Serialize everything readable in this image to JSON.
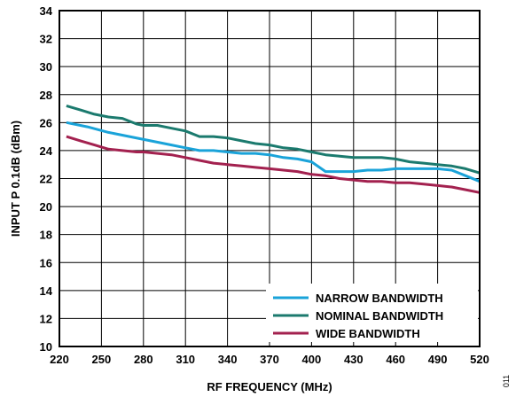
{
  "chart_data": {
    "type": "line",
    "title": "",
    "xlabel": "RF FREQUENCY (MHz)",
    "ylabel": "INPUT P 0.1dB (dBm)",
    "xlim": [
      220,
      520
    ],
    "ylim": [
      10,
      34
    ],
    "xticks": [
      220,
      250,
      280,
      310,
      340,
      370,
      400,
      430,
      460,
      490,
      520
    ],
    "yticks": [
      10,
      12,
      14,
      16,
      18,
      20,
      22,
      24,
      26,
      28,
      30,
      32,
      34
    ],
    "grid": true,
    "legend_position": "bottom-right",
    "figure_id": "011",
    "series": [
      {
        "name": "NARROW BANDWIDTH",
        "color": "#1aa3d9",
        "x": [
          225,
          240,
          255,
          270,
          285,
          300,
          310,
          320,
          330,
          340,
          350,
          360,
          370,
          380,
          390,
          400,
          410,
          420,
          430,
          440,
          450,
          460,
          470,
          480,
          490,
          500,
          510,
          520
        ],
        "y": [
          26.0,
          25.7,
          25.3,
          25.0,
          24.7,
          24.4,
          24.2,
          24.0,
          24.0,
          23.9,
          23.8,
          23.8,
          23.7,
          23.5,
          23.4,
          23.2,
          22.5,
          22.5,
          22.5,
          22.6,
          22.6,
          22.7,
          22.7,
          22.7,
          22.7,
          22.6,
          22.2,
          21.8
        ]
      },
      {
        "name": "NOMINAL BANDWIDTH",
        "color": "#1b7a6e",
        "x": [
          225,
          235,
          245,
          255,
          265,
          275,
          280,
          290,
          300,
          310,
          320,
          330,
          340,
          350,
          360,
          370,
          380,
          390,
          400,
          410,
          420,
          430,
          440,
          450,
          460,
          470,
          480,
          490,
          500,
          510,
          520
        ],
        "y": [
          27.2,
          26.9,
          26.6,
          26.4,
          26.3,
          25.9,
          25.8,
          25.8,
          25.6,
          25.4,
          25.0,
          25.0,
          24.9,
          24.7,
          24.5,
          24.4,
          24.2,
          24.1,
          23.9,
          23.7,
          23.6,
          23.5,
          23.5,
          23.5,
          23.4,
          23.2,
          23.1,
          23.0,
          22.9,
          22.7,
          22.4
        ]
      },
      {
        "name": "WIDE BANDWIDTH",
        "color": "#a3214f",
        "x": [
          225,
          235,
          245,
          255,
          265,
          275,
          280,
          290,
          300,
          310,
          320,
          330,
          340,
          350,
          360,
          370,
          380,
          390,
          400,
          410,
          420,
          430,
          440,
          450,
          460,
          470,
          480,
          490,
          500,
          510,
          520
        ],
        "y": [
          25.0,
          24.7,
          24.4,
          24.1,
          24.0,
          23.9,
          23.9,
          23.8,
          23.7,
          23.5,
          23.3,
          23.1,
          23.0,
          22.9,
          22.8,
          22.7,
          22.6,
          22.5,
          22.3,
          22.2,
          22.0,
          21.9,
          21.8,
          21.8,
          21.7,
          21.7,
          21.6,
          21.5,
          21.4,
          21.2,
          21.0
        ]
      }
    ]
  }
}
